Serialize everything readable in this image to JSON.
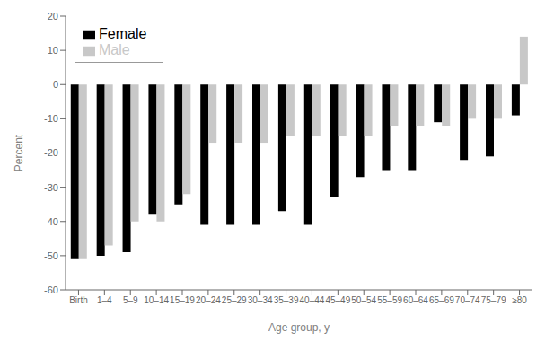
{
  "chart_data": {
    "type": "bar",
    "categories": [
      "Birth",
      "1–4",
      "5–9",
      "10–14",
      "15–19",
      "20–24",
      "25–29",
      "30–34",
      "35–39",
      "40–44",
      "45–49",
      "50–54",
      "55–59",
      "60–64",
      "65–69",
      "70–74",
      "75–79",
      "≥80"
    ],
    "series": [
      {
        "name": "Female",
        "color": "#000000",
        "values": [
          -51,
          -50,
          -49,
          -38,
          -35,
          -41,
          -41,
          -41,
          -37,
          -41,
          -33,
          -27,
          -25,
          -25,
          -11,
          -22,
          -21,
          -9
        ]
      },
      {
        "name": "Male",
        "color": "#c8c8c8",
        "values": [
          -51,
          -47,
          -40,
          -40,
          -32,
          -17,
          -17,
          -17,
          -15,
          -15,
          -15,
          -15,
          -12,
          -12,
          -12,
          -10,
          -10,
          14
        ]
      }
    ],
    "xlabel": "Age group, y",
    "ylabel": "Percent",
    "ylim": [
      -60,
      20
    ],
    "yticks": [
      -60,
      -50,
      -40,
      -30,
      -20,
      -10,
      0,
      10,
      20
    ],
    "grid": false,
    "legend": "upper left"
  }
}
